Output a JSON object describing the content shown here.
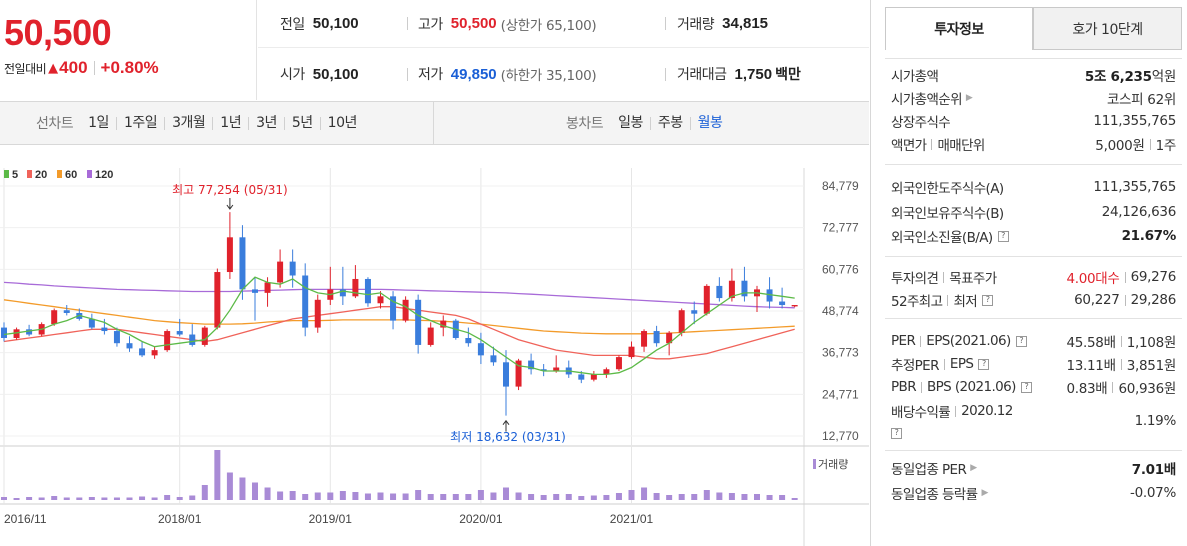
{
  "price": {
    "current": "50,500",
    "change_label": "전일대비",
    "change_arrow": "▲",
    "change_value": "400",
    "change_rate": "+0.80%"
  },
  "stats": {
    "prev_close": {
      "label": "전일",
      "value": "50,100"
    },
    "high": {
      "label": "고가",
      "value": "50,500",
      "sub": "(상한가 65,100)"
    },
    "volume": {
      "label": "거래량",
      "value": "34,815"
    },
    "open": {
      "label": "시가",
      "value": "50,100"
    },
    "low": {
      "label": "저가",
      "value": "49,850",
      "sub": "(하한가 35,100)"
    },
    "amount": {
      "label": "거래대금",
      "value": "1,750",
      "unit": "백만"
    }
  },
  "toolbar": {
    "line_label": "선차트",
    "line_items": [
      "1일",
      "1주일",
      "3개월",
      "1년",
      "3년",
      "5년",
      "10년"
    ],
    "candle_label": "봉차트",
    "candle_items": [
      "일봉",
      "주봉",
      "월봉"
    ],
    "candle_active": "월봉"
  },
  "colors": {
    "up": "#e0222c",
    "down": "#3a7ddc",
    "ma5": "#5cba47",
    "ma20": "#f0635a",
    "ma60": "#f39b2a",
    "ma120": "#a86bd8",
    "volume": "#a98bd6"
  },
  "chart_data": {
    "type": "candlestick",
    "legend": [
      {
        "name": "5",
        "color": "#5cba47"
      },
      {
        "name": "20",
        "color": "#f0635a"
      },
      {
        "name": "60",
        "color": "#f39b2a"
      },
      {
        "name": "120",
        "color": "#a86bd8"
      }
    ],
    "y_ticks": [
      "84,779",
      "72,777",
      "60,776",
      "48,774",
      "36,773",
      "24,771",
      "12,770"
    ],
    "ylim": [
      12770,
      84779
    ],
    "x_ticks": [
      {
        "label": "2016/11",
        "index": 0
      },
      {
        "label": "2018/01",
        "index": 14
      },
      {
        "label": "2019/01",
        "index": 26
      },
      {
        "label": "2020/01",
        "index": 38
      },
      {
        "label": "2021/01",
        "index": 50
      }
    ],
    "annotation_high": {
      "text": "최고 77,254 (05/31)",
      "index": 18,
      "value": 77254
    },
    "annotation_low": {
      "text": "최저 18,632 (03/31)",
      "index": 40,
      "value": 18632
    },
    "volume_label": "거래량",
    "candles": [
      [
        44000,
        45500,
        40000,
        41000
      ],
      [
        41000,
        44000,
        40500,
        43500
      ],
      [
        43500,
        44800,
        41500,
        42000
      ],
      [
        42000,
        45500,
        41500,
        45000
      ],
      [
        45000,
        49500,
        44500,
        49000
      ],
      [
        49000,
        50500,
        47500,
        48200
      ],
      [
        48200,
        49500,
        46000,
        46500
      ],
      [
        46500,
        48000,
        43500,
        44000
      ],
      [
        44000,
        46500,
        42000,
        43000
      ],
      [
        43000,
        44000,
        38500,
        39500
      ],
      [
        39500,
        41500,
        37000,
        38000
      ],
      [
        38000,
        40000,
        35500,
        36000
      ],
      [
        36000,
        38500,
        35000,
        37500
      ],
      [
        37500,
        43500,
        37000,
        43000
      ],
      [
        43000,
        46500,
        41500,
        42000
      ],
      [
        42000,
        45000,
        38500,
        39000
      ],
      [
        39000,
        44500,
        38500,
        44000
      ],
      [
        44000,
        61000,
        43500,
        60000
      ],
      [
        60000,
        77254,
        58000,
        70000
      ],
      [
        70000,
        73500,
        52000,
        55000
      ],
      [
        55000,
        58500,
        46000,
        54000
      ],
      [
        54000,
        58500,
        50000,
        57000
      ],
      [
        57000,
        66500,
        55500,
        63000
      ],
      [
        63000,
        66500,
        55500,
        59000
      ],
      [
        59000,
        62500,
        41500,
        44000
      ],
      [
        44000,
        53500,
        42500,
        52000
      ],
      [
        52000,
        61500,
        50500,
        55000
      ],
      [
        55000,
        61500,
        50500,
        53000
      ],
      [
        53000,
        62000,
        52500,
        58000
      ],
      [
        58000,
        58500,
        50000,
        51000
      ],
      [
        51000,
        54500,
        49500,
        53000
      ],
      [
        53000,
        54500,
        43500,
        46000
      ],
      [
        46000,
        53000,
        45500,
        52000
      ],
      [
        52000,
        53500,
        36500,
        39000
      ],
      [
        39000,
        45500,
        38500,
        44000
      ],
      [
        44000,
        47500,
        41500,
        46000
      ],
      [
        46000,
        46500,
        40500,
        41000
      ],
      [
        41000,
        44000,
        38500,
        39500
      ],
      [
        39500,
        42500,
        33500,
        36000
      ],
      [
        36000,
        38500,
        33000,
        34000
      ],
      [
        34000,
        37500,
        18632,
        27000
      ],
      [
        27000,
        35000,
        26000,
        34500
      ],
      [
        34500,
        36500,
        30500,
        32000
      ],
      [
        32000,
        33500,
        30000,
        31500
      ],
      [
        31500,
        36000,
        31000,
        32500
      ],
      [
        32500,
        34500,
        29500,
        30500
      ],
      [
        30500,
        31500,
        28000,
        29000
      ],
      [
        29000,
        31500,
        28500,
        30500
      ],
      [
        30500,
        32500,
        29500,
        32000
      ],
      [
        32000,
        36000,
        31500,
        35500
      ],
      [
        35500,
        40000,
        35000,
        38500
      ],
      [
        38500,
        43500,
        37000,
        43000
      ],
      [
        43000,
        44500,
        38500,
        39500
      ],
      [
        39500,
        43000,
        36000,
        42500
      ],
      [
        42500,
        49500,
        41500,
        49000
      ],
      [
        49000,
        51500,
        45000,
        48000
      ],
      [
        48000,
        56500,
        47500,
        56000
      ],
      [
        56000,
        58500,
        51500,
        52500
      ],
      [
        52500,
        61000,
        51500,
        57500
      ],
      [
        57500,
        61500,
        51500,
        53000
      ],
      [
        53000,
        56000,
        48500,
        55000
      ],
      [
        55000,
        58500,
        49500,
        51500
      ],
      [
        51500,
        55500,
        49500,
        50500
      ],
      [
        50100,
        50500,
        49850,
        50500
      ]
    ],
    "ma5": [
      42000,
      42500,
      43000,
      43500,
      45000,
      46000,
      47500,
      46500,
      45500,
      43500,
      42000,
      40000,
      38500,
      39000,
      39500,
      40000,
      40500,
      44000,
      49000,
      55000,
      58500,
      57000,
      56500,
      58000,
      55500,
      54000,
      53500,
      54500,
      54000,
      53500,
      54000,
      51500,
      50000,
      47500,
      46000,
      44500,
      43500,
      42500,
      40500,
      38000,
      35500,
      33000,
      32500,
      31500,
      31500,
      31500,
      31000,
      30500,
      30500,
      31000,
      32500,
      35000,
      37500,
      39500,
      42500,
      45500,
      48000,
      50500,
      53000,
      54000,
      54000,
      53500,
      53000,
      52500
    ],
    "ma20": [
      40000,
      40500,
      41000,
      41500,
      42000,
      42500,
      43000,
      43500,
      43500,
      43500,
      43000,
      42500,
      42000,
      41500,
      41000,
      40500,
      40000,
      40500,
      41500,
      42500,
      43500,
      44500,
      45500,
      46500,
      47000,
      47500,
      48000,
      48500,
      49000,
      49500,
      50000,
      50000,
      49500,
      49000,
      48500,
      48000,
      47500,
      46500,
      45000,
      43500,
      42000,
      40500,
      39500,
      38500,
      37500,
      37000,
      36500,
      36000,
      36000,
      36000,
      36000,
      35500,
      35000,
      35000,
      35500,
      36000,
      36500,
      37500,
      38500,
      39500,
      40500,
      41500,
      42500,
      43500
    ],
    "ma60": [
      52000,
      51500,
      51000,
      50500,
      50000,
      49500,
      49000,
      48500,
      48000,
      47500,
      47000,
      46500,
      46000,
      45700,
      45400,
      45200,
      45000,
      45000,
      45000,
      45100,
      45300,
      45600,
      45800,
      46000,
      46000,
      46000,
      46100,
      46200,
      46200,
      46200,
      46200,
      46200,
      46200,
      46100,
      46000,
      45800,
      45600,
      45300,
      45000,
      44600,
      44200,
      43800,
      43400,
      43000,
      42800,
      42600,
      42400,
      42300,
      42200,
      42200,
      42200,
      42200,
      42300,
      42400,
      42600,
      42800,
      43000,
      43200,
      43400,
      43600,
      43800,
      44000,
      44200,
      44400
    ],
    "ma120": [
      57000,
      56800,
      56500,
      56300,
      56000,
      55800,
      55600,
      55400,
      55200,
      55000,
      54900,
      54800,
      54700,
      54600,
      54500,
      54400,
      54400,
      54400,
      54400,
      54500,
      54600,
      54700,
      54800,
      54900,
      55000,
      55000,
      55000,
      55000,
      55000,
      55000,
      55000,
      54900,
      54800,
      54700,
      54600,
      54500,
      54400,
      54300,
      54200,
      54100,
      54000,
      53800,
      53600,
      53400,
      53200,
      53000,
      52800,
      52600,
      52400,
      52200,
      52000,
      51800,
      51600,
      51400,
      51200,
      51000,
      50800,
      50600,
      50400,
      50200,
      50000,
      49900,
      49800,
      49700
    ],
    "volume": [
      6,
      4,
      6,
      5,
      8,
      5,
      5,
      6,
      5,
      5,
      5,
      7,
      5,
      10,
      6,
      9,
      30,
      100,
      55,
      45,
      35,
      25,
      17,
      18,
      12,
      15,
      15,
      18,
      16,
      13,
      15,
      13,
      13,
      20,
      12,
      12,
      12,
      12,
      20,
      15,
      25,
      15,
      12,
      10,
      12,
      12,
      8,
      9,
      10,
      14,
      20,
      25,
      14,
      10,
      12,
      12,
      20,
      15,
      14,
      12,
      12,
      10,
      10,
      4
    ]
  },
  "panel": {
    "tabs": [
      "투자정보",
      "호가 10단계"
    ],
    "s1": {
      "market_cap_label": "시가총액",
      "market_cap_value": "5조 6,235",
      "market_cap_unit": "억원",
      "rank_label": "시가총액순위",
      "rank_value": "코스피 62위",
      "shares_label": "상장주식수",
      "shares_value": "111,355,765",
      "par_label": "액면가",
      "unit_label": "매매단위",
      "par_value": "5,000원",
      "unit_value": "1주"
    },
    "s2": {
      "foreign_limit_label": "외국인한도주식수(A)",
      "foreign_limit_value": "111,355,765",
      "foreign_hold_label": "외국인보유주식수(B)",
      "foreign_hold_value": "24,126,636",
      "foreign_ratio_label": "외국인소진율(B/A)",
      "foreign_ratio_value": "21.67%"
    },
    "s3": {
      "opinion_label": "투자의견",
      "target_label": "목표주가",
      "opinion_value": "4.00대수",
      "target_value": "69,276",
      "week52_label": "52주최고",
      "week52_low_label": "최저",
      "week52_high_value": "60,227",
      "week52_low_value": "29,286"
    },
    "s4": {
      "per_label": "PER",
      "eps_label": "EPS(2021.06)",
      "per_value": "45.58배",
      "eps_value": "1,108원",
      "est_per_label": "추정PER",
      "est_eps_label": "EPS",
      "est_per_value": "13.11배",
      "est_eps_value": "3,851원",
      "pbr_label": "PBR",
      "bps_label": "BPS (2021.06)",
      "pbr_value": "0.83배",
      "bps_value": "60,936원",
      "div_label": "배당수익률",
      "div_year": "2020.12",
      "div_value": "1.19%"
    },
    "s5": {
      "sector_per_label": "동일업종 PER",
      "sector_per_value": "7.01배",
      "sector_rate_label": "동일업종 등락률",
      "sector_rate_value": "-0.07%"
    }
  }
}
